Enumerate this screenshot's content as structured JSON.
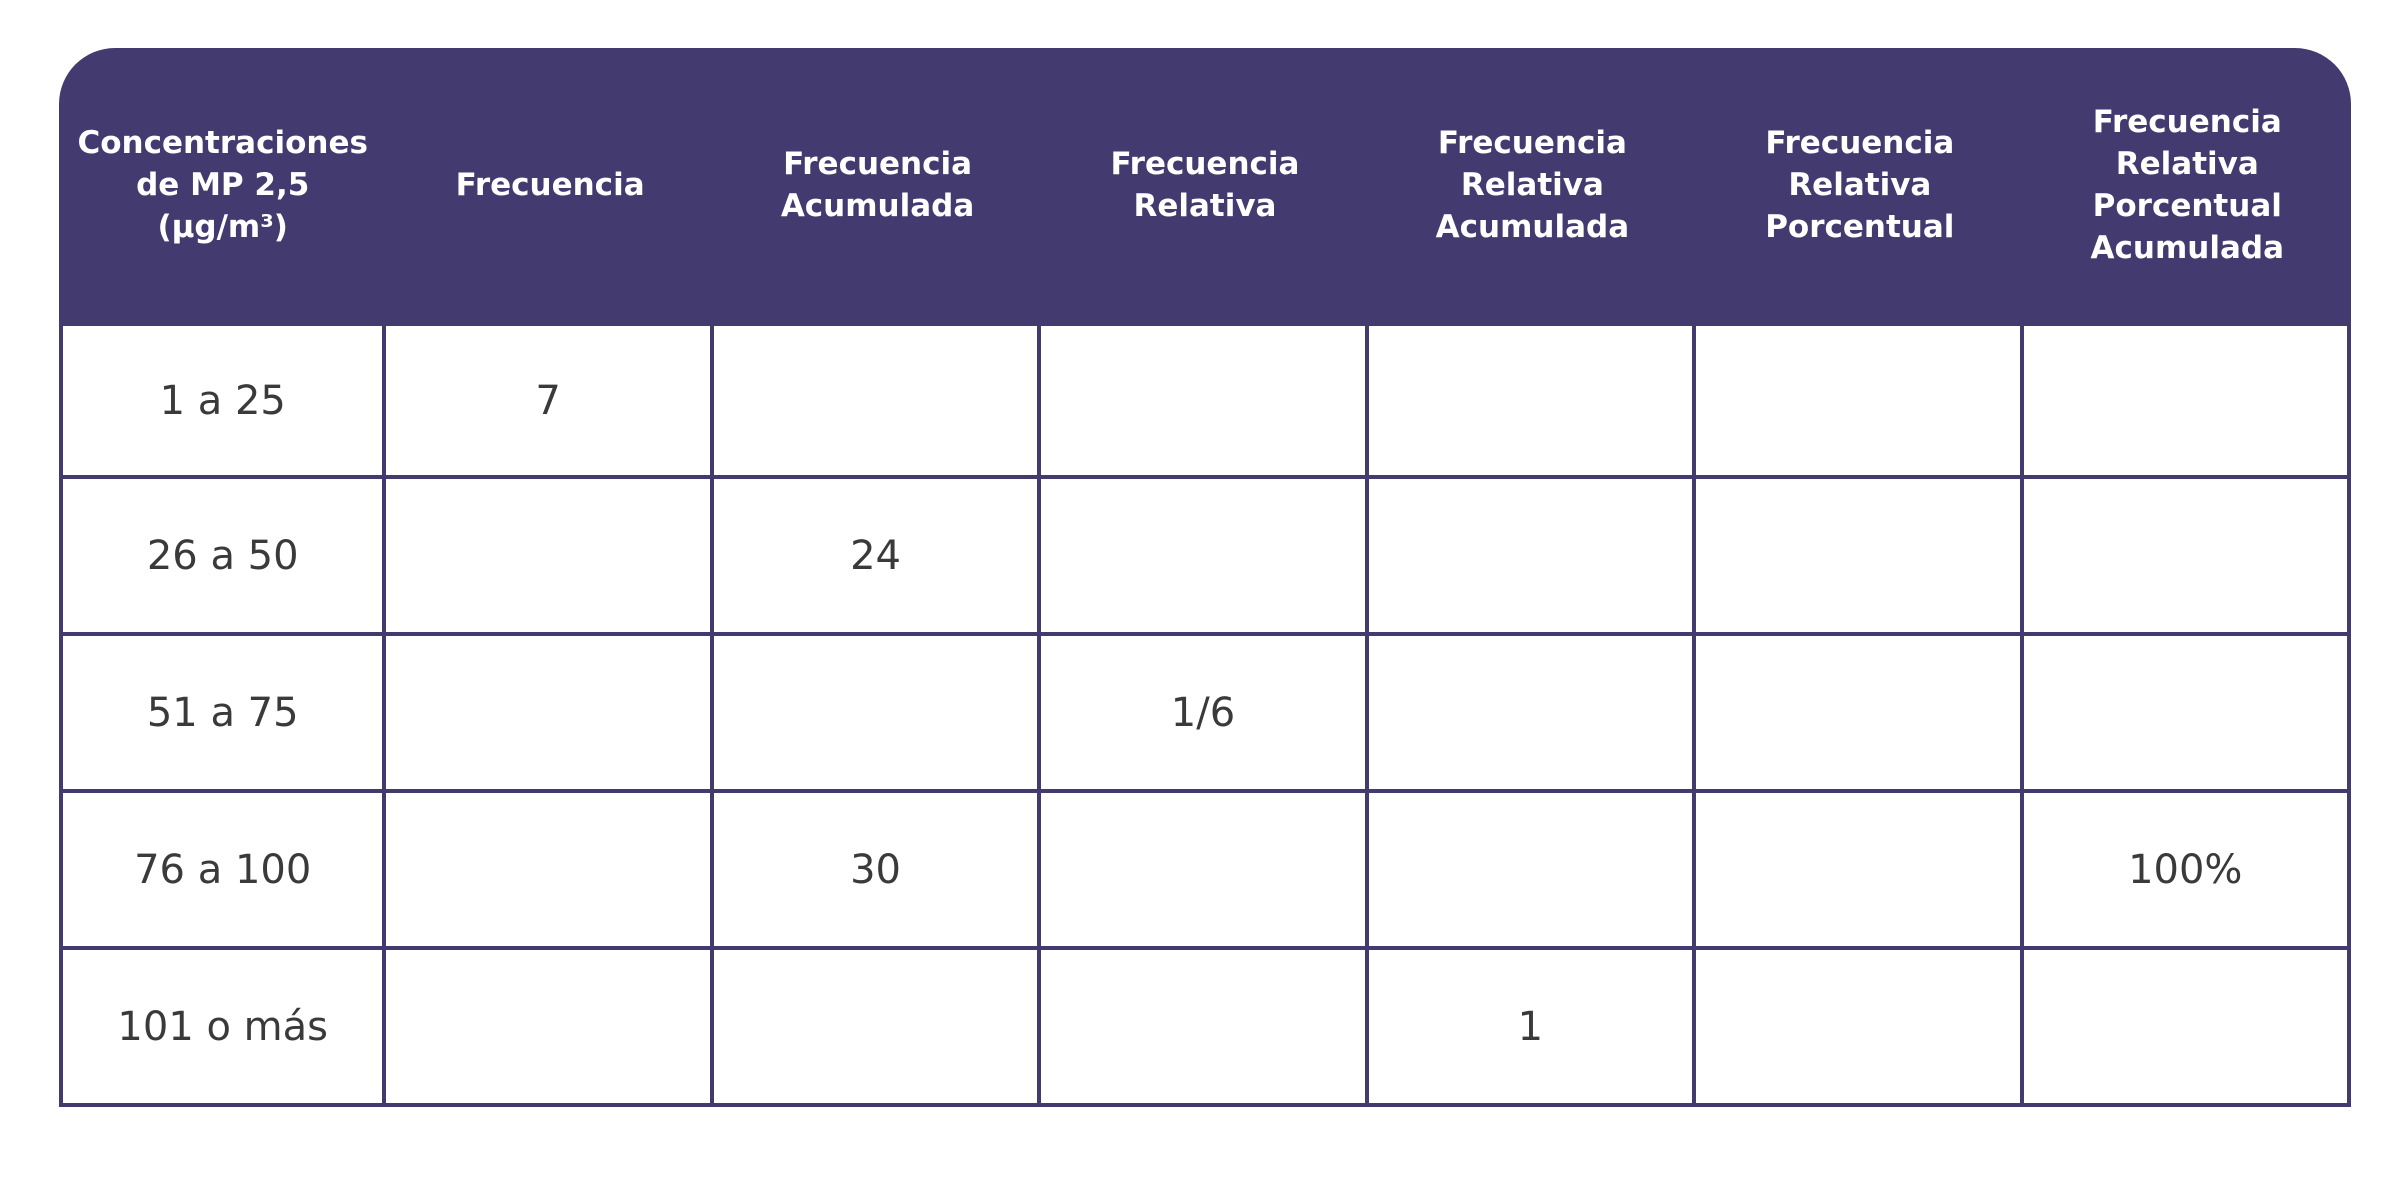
{
  "table": {
    "headers": [
      [
        "Concentraciones",
        "de MP 2,5",
        "(µg/m³)"
      ],
      [
        "Frecuencia"
      ],
      [
        "Frecuencia",
        "Acumulada"
      ],
      [
        "Frecuencia",
        "Relativa"
      ],
      [
        "Frecuencia",
        "Relativa",
        "Acumulada"
      ],
      [
        "Frecuencia",
        "Relativa",
        "Porcentual"
      ],
      [
        "Frecuencia",
        "Relativa",
        "Porcentual",
        "Acumulada"
      ]
    ],
    "rows": [
      [
        "1 a 25",
        "7",
        "",
        "",
        "",
        "",
        ""
      ],
      [
        "26 a 50",
        "",
        "24",
        "",
        "",
        "",
        ""
      ],
      [
        "51 a 75",
        "",
        "",
        "1/6",
        "",
        "",
        ""
      ],
      [
        "76 a 100",
        "",
        "30",
        "",
        "",
        "",
        "100%"
      ],
      [
        "101 o más",
        "",
        "",
        "",
        "1",
        "",
        ""
      ]
    ]
  },
  "colors": {
    "header_bg": "#433a6f",
    "header_text": "#ffffff",
    "border": "#433a6f",
    "cell_text": "#3a3a3a"
  }
}
